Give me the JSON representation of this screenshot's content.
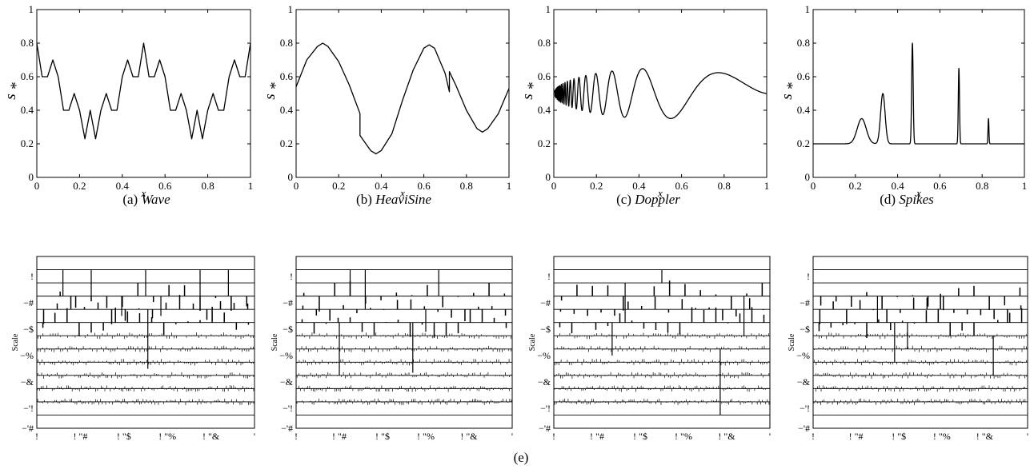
{
  "chart_data": [
    {
      "type": "line",
      "panel": "a",
      "caption_label": "(a)",
      "caption_name": "Wave",
      "xlabel": "x",
      "ylabel": "s",
      "ylabel_sub": "*",
      "xlim": [
        0,
        1
      ],
      "ylim": [
        0,
        1
      ],
      "xticks": [
        "0",
        "0.2",
        "0.4",
        "0.6",
        "0.8",
        "1"
      ],
      "yticks": [
        "0",
        "0.2",
        "0.4",
        "0.6",
        "0.8",
        "1"
      ],
      "x": [
        0,
        0.025,
        0.05,
        0.075,
        0.1,
        0.125,
        0.15,
        0.175,
        0.2,
        0.225,
        0.25,
        0.275,
        0.3,
        0.325,
        0.35,
        0.375,
        0.4,
        0.425,
        0.45,
        0.475,
        0.5,
        0.525,
        0.55,
        0.575,
        0.6,
        0.625,
        0.65,
        0.675,
        0.7,
        0.725,
        0.75,
        0.775,
        0.8,
        0.825,
        0.85,
        0.875,
        0.9,
        0.925,
        0.95,
        0.975,
        1
      ],
      "y": [
        0.8,
        0.6,
        0.6,
        0.7,
        0.6,
        0.4,
        0.4,
        0.5,
        0.4,
        0.23,
        0.4,
        0.23,
        0.4,
        0.5,
        0.4,
        0.4,
        0.6,
        0.7,
        0.6,
        0.6,
        0.8,
        0.6,
        0.6,
        0.7,
        0.6,
        0.4,
        0.4,
        0.5,
        0.4,
        0.23,
        0.4,
        0.23,
        0.4,
        0.5,
        0.4,
        0.4,
        0.6,
        0.7,
        0.6,
        0.6,
        0.8
      ]
    },
    {
      "type": "line",
      "panel": "b",
      "caption_label": "(b)",
      "caption_name": "HeaviSine",
      "xlabel": "x",
      "ylabel": "s",
      "ylabel_sub": "*",
      "xlim": [
        0,
        1
      ],
      "ylim": [
        0,
        1
      ],
      "xticks": [
        "0",
        "0.2",
        "0.4",
        "0.6",
        "0.8",
        "1"
      ],
      "yticks": [
        "0",
        "0.2",
        "0.4",
        "0.6",
        "0.8",
        "1"
      ],
      "x": [
        0,
        0.05,
        0.1,
        0.125,
        0.15,
        0.2,
        0.25,
        0.3,
        0.3,
        0.35,
        0.375,
        0.4,
        0.45,
        0.5,
        0.55,
        0.6,
        0.625,
        0.65,
        0.7,
        0.72,
        0.72,
        0.75,
        0.8,
        0.85,
        0.875,
        0.9,
        0.95,
        1
      ],
      "y": [
        0.54,
        0.7,
        0.78,
        0.8,
        0.78,
        0.69,
        0.55,
        0.38,
        0.25,
        0.16,
        0.14,
        0.16,
        0.26,
        0.46,
        0.64,
        0.77,
        0.79,
        0.77,
        0.62,
        0.51,
        0.63,
        0.55,
        0.4,
        0.29,
        0.27,
        0.29,
        0.38,
        0.53
      ]
    },
    {
      "type": "line",
      "panel": "c",
      "caption_label": "(c)",
      "caption_name": "Doppler",
      "xlabel": "x",
      "ylabel": "s",
      "ylabel_sub": "*",
      "xlim": [
        0,
        1
      ],
      "ylim": [
        0,
        1
      ],
      "xticks": [
        "0",
        "0.2",
        "0.4",
        "0.6",
        "0.8",
        "1"
      ],
      "yticks": [
        "0",
        "0.2",
        "0.4",
        "0.6",
        "0.8",
        "1"
      ],
      "function": "0.5 + 0.3*sqrt(x*(1-x))*sin(2.1*pi/(x+0.05))",
      "samples": 1200
    },
    {
      "type": "line",
      "panel": "d",
      "caption_label": "(d)",
      "caption_name": "Spikes",
      "xlabel": "x",
      "ylabel": "s",
      "ylabel_sub": "*",
      "xlim": [
        0,
        1
      ],
      "ylim": [
        0,
        1
      ],
      "xticks": [
        "0",
        "0.2",
        "0.4",
        "0.6",
        "0.8",
        "1"
      ],
      "yticks": [
        "0",
        "0.2",
        "0.4",
        "0.6",
        "0.8",
        "1"
      ],
      "baseline": 0.2,
      "peaks": [
        {
          "x": 0.23,
          "y": 0.35,
          "width": 0.03
        },
        {
          "x": 0.33,
          "y": 0.5,
          "width": 0.015
        },
        {
          "x": 0.47,
          "y": 0.8,
          "width": 0.005
        },
        {
          "x": 0.69,
          "y": 0.65,
          "width": 0.004
        },
        {
          "x": 0.83,
          "y": 0.35,
          "width": 0.003
        }
      ]
    }
  ],
  "wavelet_panels": {
    "caption": "(e)",
    "ylabel": "Scale",
    "yticks": [
      "!",
      "−#",
      "−$",
      "−%",
      "−&",
      "−'!",
      "−'#"
    ],
    "xticks": [
      "!",
      "! \"#",
      "! \"$",
      "! \"%",
      "! \"&",
      "'"
    ]
  }
}
